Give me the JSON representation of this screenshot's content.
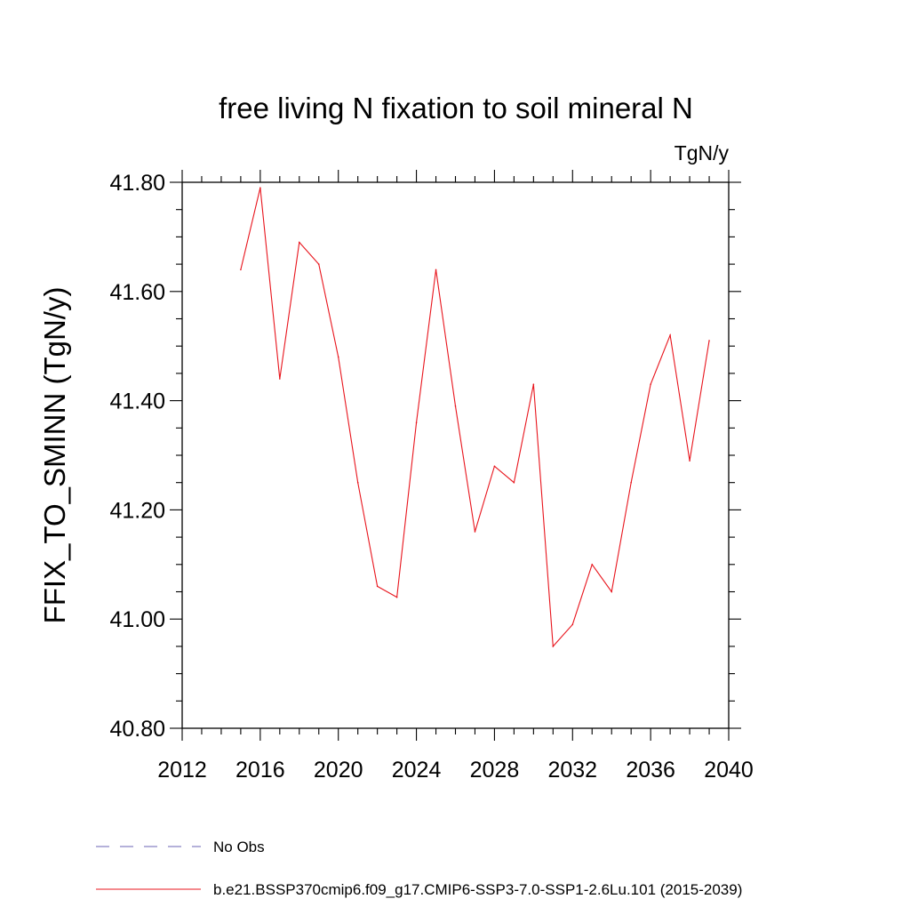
{
  "chart_data": {
    "type": "line",
    "title": "free living N fixation to soil mineral N",
    "units_label": "TgN/y",
    "xlabel": "",
    "ylabel": "FFIX_TO_SMINN  (TgN/y)",
    "xlim": [
      2012,
      2040
    ],
    "ylim": [
      40.8,
      41.8
    ],
    "x_ticks": [
      2012,
      2016,
      2020,
      2024,
      2028,
      2032,
      2036,
      2040
    ],
    "x_tick_labels": [
      "2012",
      "2016",
      "2020",
      "2024",
      "2028",
      "2032",
      "2036",
      "2040"
    ],
    "y_ticks": [
      40.8,
      41.0,
      41.2,
      41.4,
      41.6,
      41.8
    ],
    "y_tick_labels": [
      "40.80",
      "41.00",
      "41.20",
      "41.40",
      "41.60",
      "41.80"
    ],
    "grid": false,
    "legend_position": "bottom",
    "series": [
      {
        "name": "b.e21.BSSP370cmip6.f09_g17.CMIP6-SSP3-7.0-SSP1-2.6Lu.101 (2015-2039)",
        "color": "#e8141c",
        "style": "solid",
        "x": [
          2015,
          2016,
          2017,
          2018,
          2019,
          2020,
          2021,
          2022,
          2023,
          2024,
          2025,
          2026,
          2027,
          2028,
          2029,
          2030,
          2031,
          2032,
          2033,
          2034,
          2035,
          2036,
          2037,
          2038,
          2039
        ],
        "values": [
          41.64,
          41.79,
          41.44,
          41.69,
          41.65,
          41.48,
          41.25,
          41.06,
          41.04,
          41.36,
          41.64,
          41.39,
          41.16,
          41.28,
          41.25,
          41.43,
          40.95,
          40.99,
          41.1,
          41.05,
          41.25,
          41.43,
          41.52,
          41.29,
          41.51
        ]
      }
    ],
    "legend": [
      {
        "label": "No Obs",
        "color": "#6b63b5",
        "style": "dashed"
      },
      {
        "label": "b.e21.BSSP370cmip6.f09_g17.CMIP6-SSP3-7.0-SSP1-2.6Lu.101 (2015-2039)",
        "color": "#e8141c",
        "style": "solid"
      }
    ]
  }
}
